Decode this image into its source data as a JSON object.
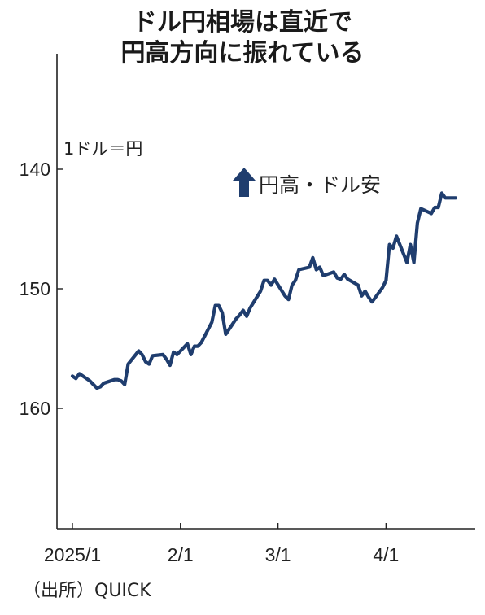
{
  "title_lines": [
    "ドル円相場は直近で",
    "円高方向に振れている"
  ],
  "source": "（出所）QUICK",
  "colors": {
    "line": "#1f3d6e",
    "axis": "#222222",
    "text": "#222222"
  },
  "chart_data": {
    "type": "line",
    "title": "ドル円相場は直近で円高方向に振れている",
    "unit_label": "1ドル＝円",
    "annotation": {
      "icon": "up-arrow-icon",
      "text": "円高・ドル安"
    },
    "y_inverted": true,
    "ylim": [
      130,
      170
    ],
    "yticks": [
      140,
      150,
      160
    ],
    "xticks": [
      {
        "label": "2025/1",
        "date": "2025-01-01"
      },
      {
        "label": "2/1",
        "date": "2025-02-01"
      },
      {
        "label": "3/1",
        "date": "2025-03-01"
      },
      {
        "label": "4/1",
        "date": "2025-04-01"
      }
    ],
    "xlim": [
      "2025-01-01",
      "2025-04-21"
    ],
    "grid": false,
    "series": [
      {
        "points": [
          [
            "2025-01-01",
            157.3
          ],
          [
            "2025-01-02",
            157.5
          ],
          [
            "2025-01-03",
            157.1
          ],
          [
            "2025-01-06",
            157.7
          ],
          [
            "2025-01-07",
            158.0
          ],
          [
            "2025-01-08",
            158.3
          ],
          [
            "2025-01-09",
            158.2
          ],
          [
            "2025-01-10",
            157.9
          ],
          [
            "2025-01-13",
            157.6
          ],
          [
            "2025-01-14",
            157.6
          ],
          [
            "2025-01-15",
            157.7
          ],
          [
            "2025-01-16",
            158.0
          ],
          [
            "2025-01-17",
            156.3
          ],
          [
            "2025-01-20",
            155.2
          ],
          [
            "2025-01-21",
            155.5
          ],
          [
            "2025-01-22",
            156.1
          ],
          [
            "2025-01-23",
            156.3
          ],
          [
            "2025-01-24",
            155.6
          ],
          [
            "2025-01-27",
            155.5
          ],
          [
            "2025-01-28",
            155.9
          ],
          [
            "2025-01-29",
            156.4
          ],
          [
            "2025-01-30",
            155.3
          ],
          [
            "2025-01-31",
            155.5
          ],
          [
            "2025-02-03",
            154.6
          ],
          [
            "2025-02-04",
            155.5
          ],
          [
            "2025-02-05",
            154.8
          ],
          [
            "2025-02-06",
            154.8
          ],
          [
            "2025-02-07",
            154.5
          ],
          [
            "2025-02-10",
            152.8
          ],
          [
            "2025-02-11",
            151.4
          ],
          [
            "2025-02-12",
            151.4
          ],
          [
            "2025-02-13",
            152.0
          ],
          [
            "2025-02-14",
            153.8
          ],
          [
            "2025-02-17",
            152.5
          ],
          [
            "2025-02-18",
            152.2
          ],
          [
            "2025-02-19",
            151.8
          ],
          [
            "2025-02-20",
            152.3
          ],
          [
            "2025-02-21",
            151.6
          ],
          [
            "2025-02-24",
            150.2
          ],
          [
            "2025-02-25",
            149.3
          ],
          [
            "2025-02-26",
            149.3
          ],
          [
            "2025-02-27",
            149.7
          ],
          [
            "2025-02-28",
            149.2
          ],
          [
            "2025-03-03",
            150.6
          ],
          [
            "2025-03-04",
            150.9
          ],
          [
            "2025-03-05",
            149.7
          ],
          [
            "2025-03-06",
            149.3
          ],
          [
            "2025-03-07",
            148.4
          ],
          [
            "2025-03-10",
            148.2
          ],
          [
            "2025-03-11",
            147.4
          ],
          [
            "2025-03-12",
            148.4
          ],
          [
            "2025-03-13",
            148.2
          ],
          [
            "2025-03-14",
            148.9
          ],
          [
            "2025-03-17",
            148.6
          ],
          [
            "2025-03-18",
            149.1
          ],
          [
            "2025-03-19",
            149.2
          ],
          [
            "2025-03-20",
            148.8
          ],
          [
            "2025-03-21",
            149.2
          ],
          [
            "2025-03-24",
            149.7
          ],
          [
            "2025-03-25",
            150.6
          ],
          [
            "2025-03-26",
            150.2
          ],
          [
            "2025-03-27",
            150.7
          ],
          [
            "2025-03-28",
            151.1
          ],
          [
            "2025-03-31",
            149.9
          ],
          [
            "2025-04-01",
            149.3
          ],
          [
            "2025-04-02",
            146.3
          ],
          [
            "2025-04-03",
            146.6
          ],
          [
            "2025-04-04",
            145.6
          ],
          [
            "2025-04-07",
            147.8
          ],
          [
            "2025-04-08",
            146.3
          ],
          [
            "2025-04-09",
            147.8
          ],
          [
            "2025-04-10",
            144.5
          ],
          [
            "2025-04-11",
            143.3
          ],
          [
            "2025-04-14",
            143.7
          ],
          [
            "2025-04-15",
            143.2
          ],
          [
            "2025-04-16",
            143.2
          ],
          [
            "2025-04-17",
            142.0
          ],
          [
            "2025-04-18",
            142.4
          ],
          [
            "2025-04-21",
            142.4
          ]
        ]
      }
    ]
  }
}
